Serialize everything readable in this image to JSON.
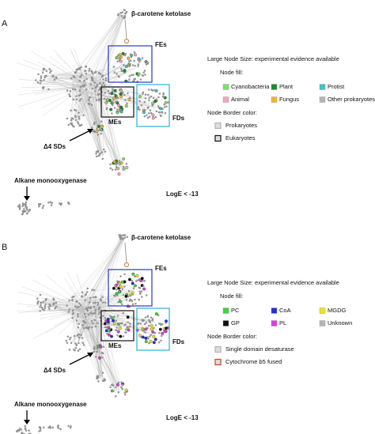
{
  "panels": [
    {
      "label": "A",
      "annotations": {
        "ketolase": "β-carotene ketolase",
        "fes": "FEs",
        "mes": "MEs",
        "fds": "FDs",
        "d4sds": "Δ4 SDs",
        "alkane": "Alkane monooxygenase",
        "loge": "LogE < -13"
      },
      "legend": {
        "title": "Large Node Size: experimental evidence available",
        "fill_title": "Node fill:",
        "fill_items": [
          {
            "label": "Cyanobacteria",
            "color": "#7ee06e"
          },
          {
            "label": "Plant",
            "color": "#1c8a2a"
          },
          {
            "label": "Protist",
            "color": "#3cc6c0"
          },
          {
            "label": "Animal",
            "color": "#f2a7b8"
          },
          {
            "label": "Fungus",
            "color": "#f2b72a"
          },
          {
            "label": "Other prokaryotes",
            "color": "#b5b5b5"
          }
        ],
        "border_title": "Node Border color:",
        "border_items": [
          {
            "label": "Prokaryotes",
            "color": "#b5b5b5"
          },
          {
            "label": "Eukaryotes",
            "color": "#111111"
          }
        ]
      }
    },
    {
      "label": "B",
      "annotations": {
        "ketolase": "β-carotene ketolase",
        "fes": "FEs",
        "mes": "MEs",
        "fds": "FDs",
        "d4sds": "Δ4 SDs",
        "alkane": "Alkane monooxygenase",
        "loge": "LogE < -13"
      },
      "legend": {
        "title": "Large Node Size: experimental evidence available",
        "fill_title": "Node fill:",
        "fill_items": [
          {
            "label": "PC",
            "color": "#3ad63a"
          },
          {
            "label": "CoA",
            "color": "#2630d8"
          },
          {
            "label": "MGDG",
            "color": "#f2e21a"
          },
          {
            "label": "GP",
            "color": "#111111"
          },
          {
            "label": "PL",
            "color": "#e23ad8"
          },
          {
            "label": "Unknown",
            "color": "#b5b5b5"
          }
        ],
        "border_title": "Node Border color:",
        "border_items": [
          {
            "label": "Single domain desaturase",
            "color": "#b5b5b5"
          },
          {
            "label": "Cytochrome b5 fused",
            "color": "#d93a2a"
          }
        ]
      }
    }
  ]
}
